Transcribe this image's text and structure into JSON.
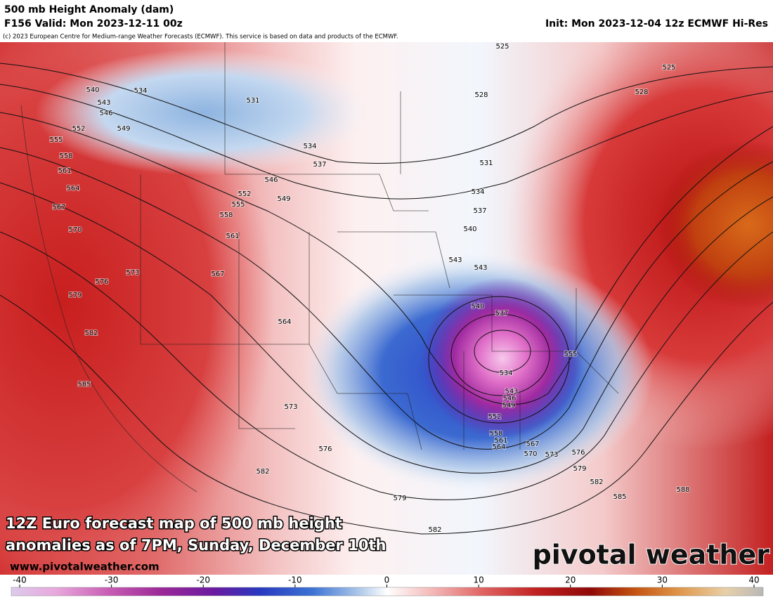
{
  "header": {
    "title": "500 mb Height Anomaly (dam)",
    "valid": "F156 Valid: Mon 2023-12-11 00z",
    "init": "Init: Mon 2023-12-04 12z ECMWF Hi-Res",
    "copyright": "(c) 2023 European Centre for Medium-range Weather Forecasts (ECMWF). This service is based on data and products of the ECMWF."
  },
  "overlay": {
    "caption_lines": [
      "12Z Euro forecast map of 500 mb height",
      "anomalies as of 7PM, Sunday, December 10th"
    ],
    "website": "www.pivotalweather.com",
    "logo": "pivotal weather"
  },
  "contour_labels": [
    525,
    525,
    528,
    528,
    540,
    534,
    531,
    543,
    546,
    549,
    552,
    555,
    558,
    561,
    564,
    567,
    570,
    573,
    576,
    579,
    582,
    585,
    534,
    537,
    546,
    549,
    552,
    555,
    558,
    561,
    567,
    564,
    573,
    576,
    582,
    579,
    582,
    531,
    534,
    537,
    540,
    543,
    543,
    540,
    537,
    534,
    543,
    546,
    549,
    552,
    558,
    561,
    564,
    567,
    570,
    573,
    555,
    576,
    579,
    582,
    585,
    588
  ],
  "colorbar": {
    "range": [
      -40,
      40
    ],
    "ticks": [
      -40,
      -30,
      -20,
      -10,
      0,
      10,
      20,
      30,
      40
    ]
  }
}
